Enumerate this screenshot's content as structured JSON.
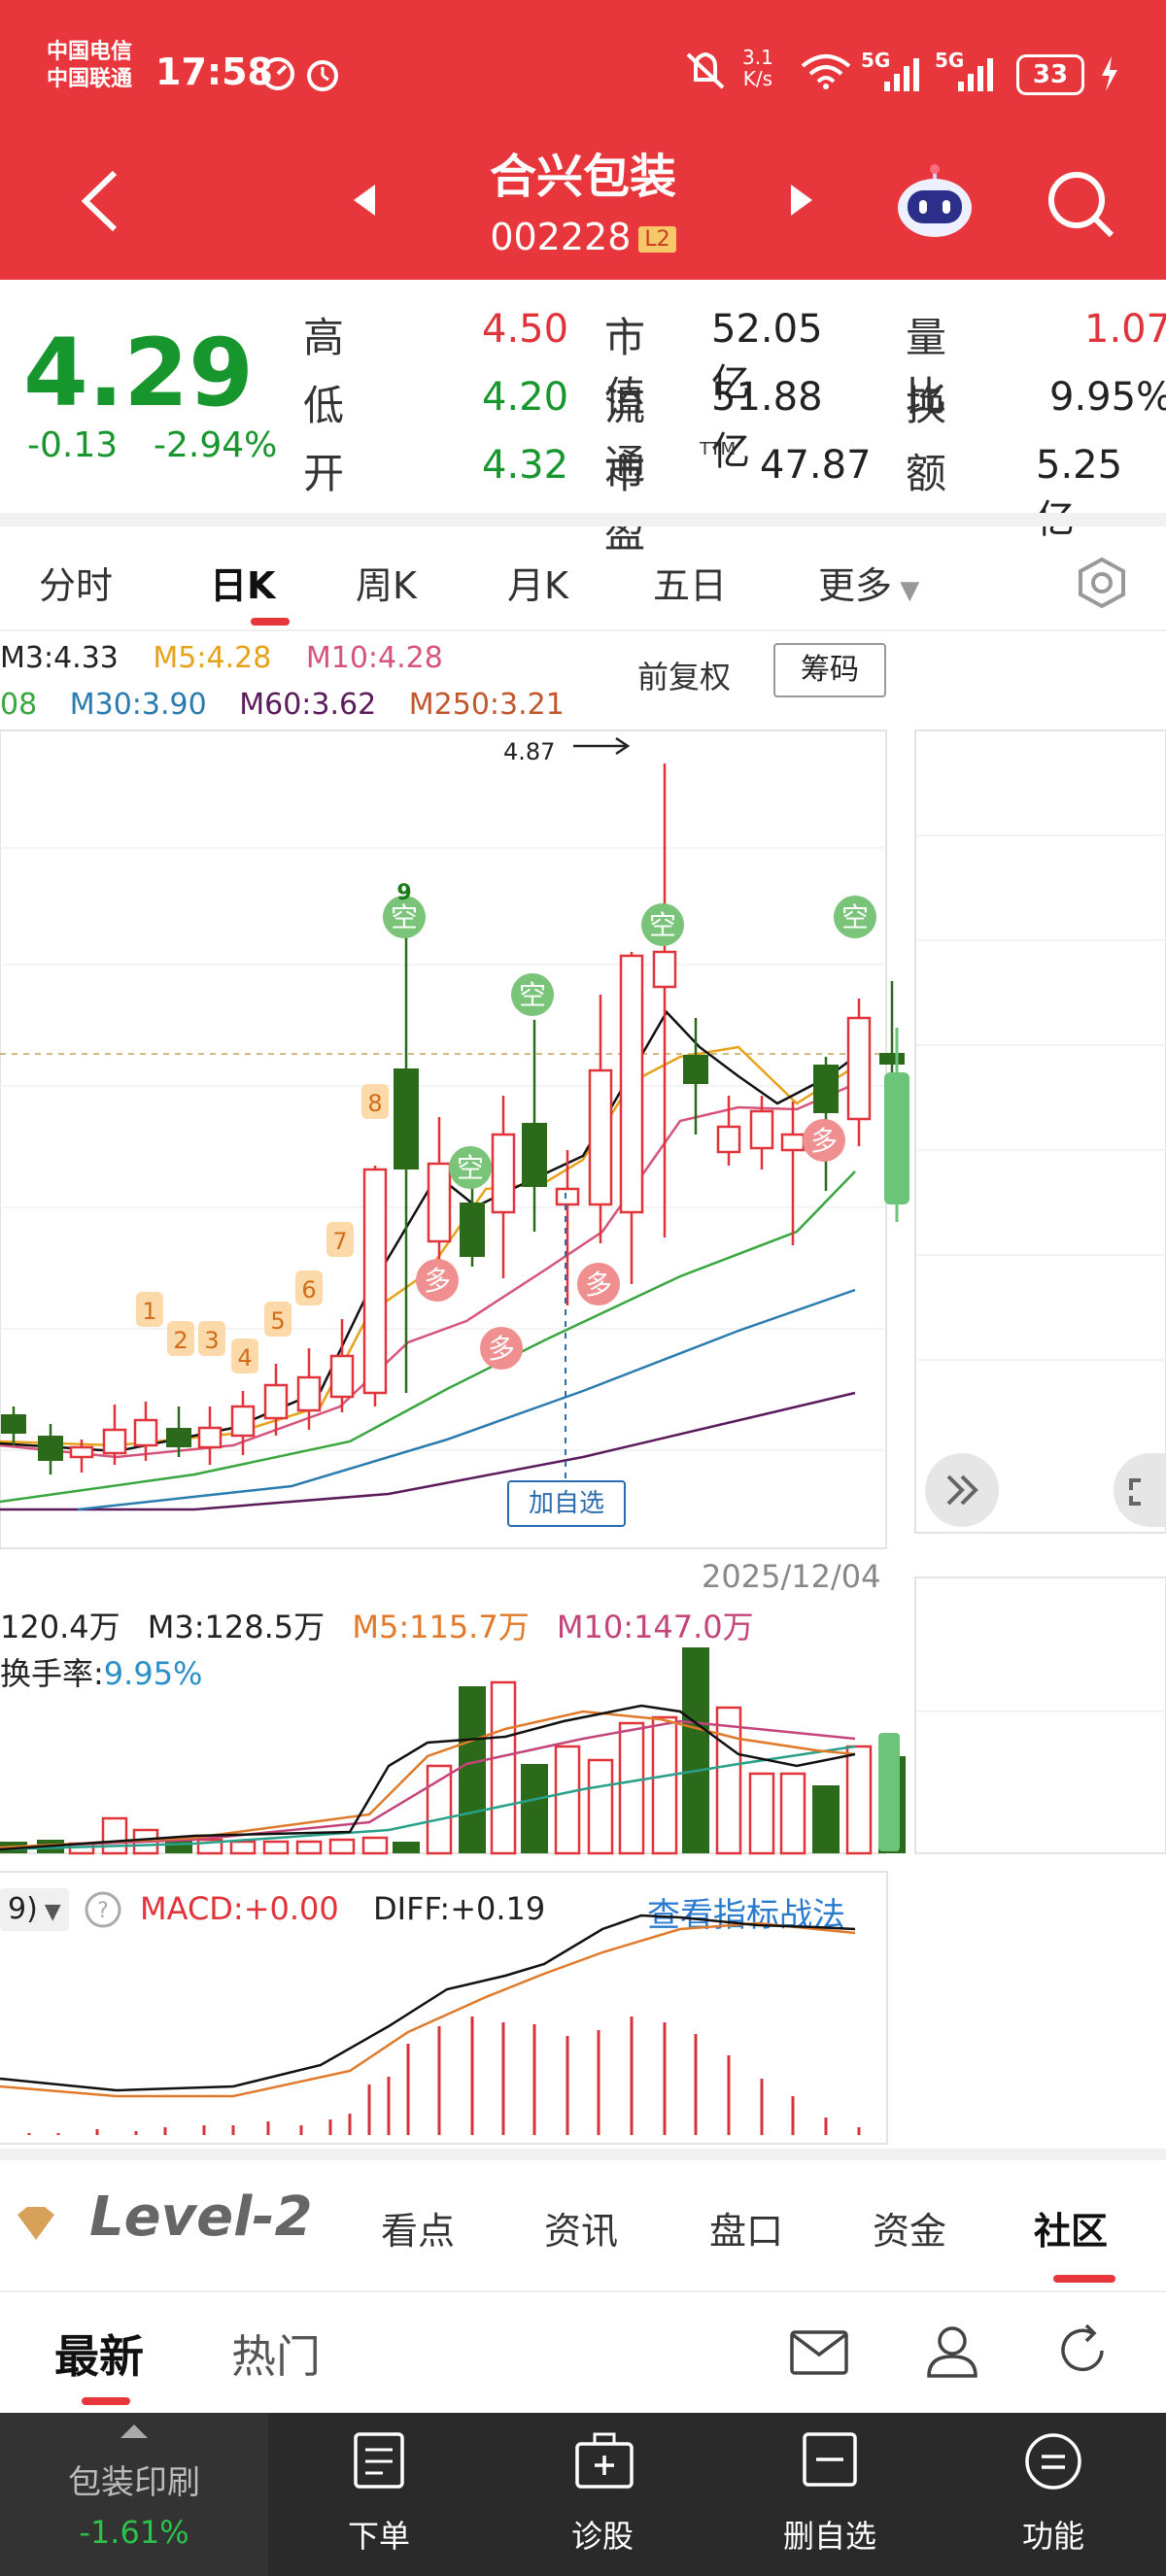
{
  "status_bar": {
    "carrier1": "中国电信",
    "carrier2": "中国联通",
    "time": "17:58",
    "net_speed_top": "3.1",
    "net_speed_bottom": "K/s",
    "signal1": "5G",
    "signal2": "5G",
    "battery": "33"
  },
  "header": {
    "stock_name": "合兴包装",
    "stock_code": "002228",
    "level_badge": "L2"
  },
  "quote": {
    "price": "4.29",
    "change": "-0.13",
    "change_pct": "-2.94%",
    "rows": [
      {
        "l1": "高",
        "v1": "4.50",
        "l2": "市值",
        "v2": "52.05亿",
        "l3": "量比",
        "v3": "1.07"
      },
      {
        "l1": "低",
        "v1": "4.20",
        "l2": "流通",
        "v2": "51.88亿",
        "l3": "换",
        "v3": "9.95%"
      },
      {
        "l1": "开",
        "v1": "4.32",
        "l2": "市盈",
        "v2": "47.87",
        "l3": "额",
        "v3": "5.25亿"
      }
    ],
    "pe_sup": "TTM"
  },
  "chart_tabs": [
    "分时",
    "日K",
    "周K",
    "月K",
    "五日",
    "更多"
  ],
  "ma_legend": {
    "row1": [
      {
        "text": "M3:4.33",
        "color": "#222222"
      },
      {
        "text": "M5:4.28",
        "color": "#e8a21a"
      },
      {
        "text": "M10:4.28",
        "color": "#d6547a"
      }
    ],
    "row2": [
      {
        "text": "08",
        "color": "#3aa640"
      },
      {
        "text": "M30:3.90",
        "color": "#2a7bb0"
      },
      {
        "text": "M60:3.62",
        "color": "#5b1a5b"
      },
      {
        "text": "M250:3.21",
        "color": "#c2562c"
      }
    ],
    "adjust": "前复权",
    "chips": "筹码"
  },
  "kline": {
    "max_label": "4.87",
    "add_watch": "加自选",
    "date": "2025/12/04",
    "signals": {
      "up": "多",
      "down": "空",
      "nine": "9"
    },
    "seq_labels": [
      "1",
      "2",
      "3",
      "4",
      "5",
      "6",
      "7",
      "8"
    ]
  },
  "volume": {
    "legend": [
      {
        "text": "120.4万",
        "color": "#222222"
      },
      {
        "text": "M3:128.5万",
        "color": "#222222"
      },
      {
        "text": "M5:115.7万",
        "color": "#e07a2a"
      },
      {
        "text": "M10:147.0万",
        "color": "#c4457a"
      }
    ],
    "turnover_label": "换手率:",
    "turnover_value": "9.95%"
  },
  "macd": {
    "param": "9)",
    "macd": "MACD:+0.00",
    "diff": "DIFF:+0.19",
    "link": "查看指标战法"
  },
  "info_tabs": {
    "level2": "Level-2",
    "items": [
      "看点",
      "资讯",
      "盘口",
      "资金",
      "社区"
    ]
  },
  "sub_tabs": [
    "最新",
    "热门"
  ],
  "bottom_nav": {
    "sector_name": "包装印刷",
    "sector_change": "-1.61%",
    "items": [
      "下单",
      "诊股",
      "删自选",
      "功能"
    ]
  },
  "colors": {
    "header_red": "#e8373c",
    "up": "#e0343a",
    "down": "#17962d",
    "nav_bg": "#2a2a2a"
  }
}
